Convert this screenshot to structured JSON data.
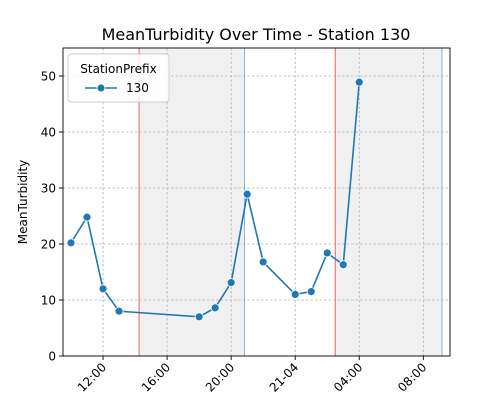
{
  "chart_data": {
    "type": "line",
    "title": "MeanTurbidity Over Time - Station 130",
    "xlabel": "",
    "ylabel": "MeanTurbidity",
    "xlim": [
      "2024-01-20T09:30",
      "2024-01-21T09:40"
    ],
    "ylim": [
      0,
      55
    ],
    "yticks": [
      0,
      10,
      20,
      30,
      40,
      50
    ],
    "xticks": [
      {
        "t": "2024-01-20T12:00",
        "label": "12:00"
      },
      {
        "t": "2024-01-20T16:00",
        "label": "16:00"
      },
      {
        "t": "2024-01-20T20:00",
        "label": "20:00"
      },
      {
        "t": "2024-01-21T00:00",
        "label": "21-04"
      },
      {
        "t": "2024-01-21T04:00",
        "label": "04:00"
      },
      {
        "t": "2024-01-21T08:00",
        "label": "08:00"
      }
    ],
    "grid": true,
    "legend": {
      "title": "StationPrefix",
      "placement": "top-left"
    },
    "shaded_regions": [
      {
        "start": "2024-01-20T14:15",
        "end": "2024-01-20T20:50"
      },
      {
        "start": "2024-01-21T02:30",
        "end": "2024-01-21T09:10"
      }
    ],
    "red_lines": [
      "2024-01-20T14:15",
      "2024-01-21T02:30"
    ],
    "blue_lines": [
      "2024-01-20T20:50",
      "2024-01-21T09:10"
    ],
    "series": [
      {
        "name": "130",
        "color": "#1f77b4",
        "points": [
          {
            "t": "2024-01-20T10:00",
            "y": 20.2
          },
          {
            "t": "2024-01-20T11:00",
            "y": 24.8
          },
          {
            "t": "2024-01-20T12:00",
            "y": 12.0
          },
          {
            "t": "2024-01-20T13:00",
            "y": 8.0
          },
          {
            "t": "2024-01-20T18:00",
            "y": 7.0
          },
          {
            "t": "2024-01-20T19:00",
            "y": 8.6
          },
          {
            "t": "2024-01-20T20:00",
            "y": 13.1
          },
          {
            "t": "2024-01-20T21:00",
            "y": 28.9
          },
          {
            "t": "2024-01-20T22:00",
            "y": 16.8
          },
          {
            "t": "2024-01-21T00:00",
            "y": 11.0
          },
          {
            "t": "2024-01-21T01:00",
            "y": 11.5
          },
          {
            "t": "2024-01-21T02:00",
            "y": 18.4
          },
          {
            "t": "2024-01-21T03:00",
            "y": 16.3
          },
          {
            "t": "2024-01-21T04:00",
            "y": 48.9
          }
        ]
      }
    ]
  }
}
